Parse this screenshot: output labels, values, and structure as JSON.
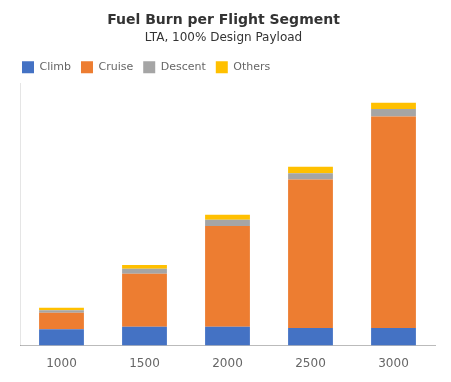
{
  "chart_data": {
    "type": "bar",
    "title": "Fuel Burn per Flight Segment",
    "subtitle": "LTA, 100% Design Payload",
    "categories": [
      "1000",
      "1500",
      "2000",
      "2500",
      "3000"
    ],
    "series": [
      {
        "name": "Climb",
        "color": "#4472C4",
        "values": [
          0.13,
          0.15,
          0.15,
          0.14,
          0.14
        ]
      },
      {
        "name": "Cruise",
        "color": "#ED7D31",
        "values": [
          0.13,
          0.42,
          0.8,
          1.18,
          1.68
        ]
      },
      {
        "name": "Descent",
        "color": "#A5A5A5",
        "values": [
          0.02,
          0.04,
          0.05,
          0.05,
          0.06
        ]
      },
      {
        "name": "Others",
        "color": "#FFC000",
        "values": [
          0.02,
          0.03,
          0.04,
          0.05,
          0.05
        ]
      }
    ],
    "stacked": true,
    "ylim": [
      0,
      2.0844
    ],
    "tick_labels": "x",
    "grid": false,
    "legend": "upper left"
  }
}
